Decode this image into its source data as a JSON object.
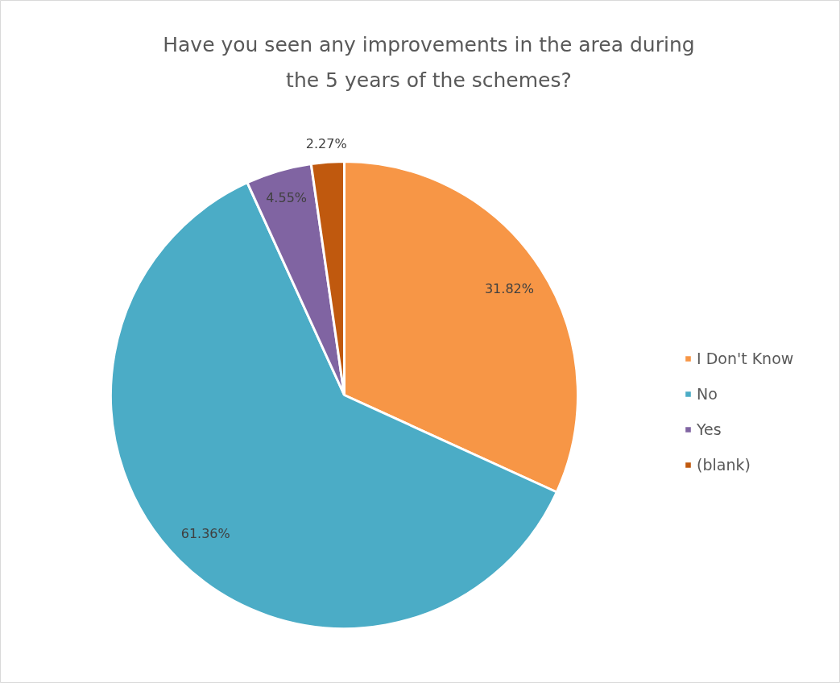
{
  "chart_data": {
    "type": "pie",
    "title": "Have you seen any improvements in the area during the 5 years of the schemes?",
    "categories": [
      "I Don't Know",
      "No",
      "Yes",
      "(blank)"
    ],
    "values": [
      31.82,
      61.36,
      4.55,
      2.27
    ],
    "colors": [
      "#f79646",
      "#4bacc6",
      "#8064a2",
      "#c0590e"
    ],
    "value_labels": [
      "31.82%",
      "61.36%",
      "4.55%",
      "2.27%"
    ],
    "legend": "right"
  }
}
